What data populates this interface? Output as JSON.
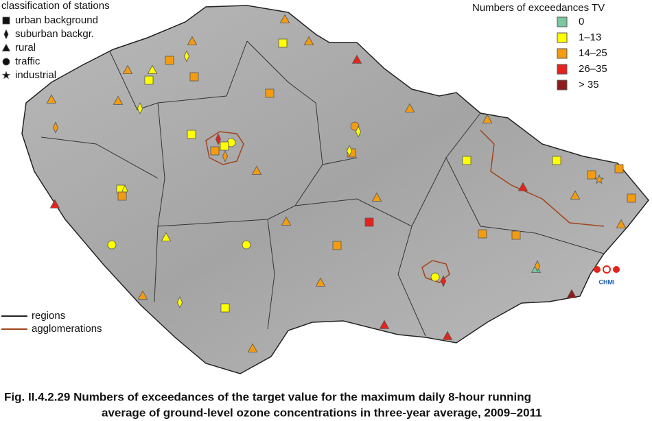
{
  "legend_station": {
    "title": "classification of stations",
    "items": [
      "urban background",
      "suburban backgr.",
      "rural",
      "traffic",
      "industrial"
    ]
  },
  "legend_exceedances": {
    "title": "Numbers of exceedances TV",
    "items": [
      {
        "label": "0",
        "color": "#7cc7a0"
      },
      {
        "label": "1–13",
        "color": "#ffff00"
      },
      {
        "label": "14–25",
        "color": "#f39c12"
      },
      {
        "label": "26–35",
        "color": "#e3241d"
      },
      {
        "label": "> 35",
        "color": "#8e1b1b"
      }
    ]
  },
  "legend_lines": {
    "items": [
      {
        "label": "regions",
        "color": "#222222"
      },
      {
        "label": "agglomerations",
        "color": "#a0441c"
      }
    ]
  },
  "logo": "CHMI",
  "caption": {
    "line1": "Fig. II.4.2.29  Numbers of exceedances of the target value for the maximum daily 8-hour running",
    "line2": "average of ground-level ozone concentrations in three-year average, 2009–2011"
  }
}
